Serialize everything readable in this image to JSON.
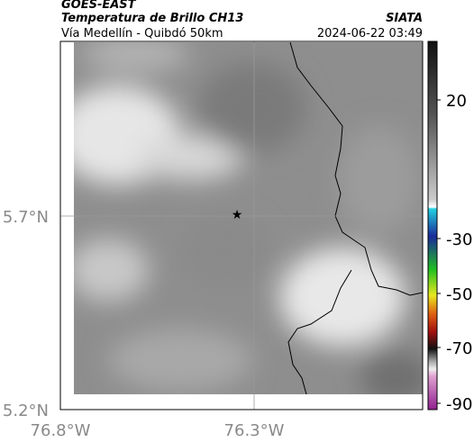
{
  "header": {
    "satellite": "GOES-EAST",
    "product": "Temperatura de Brillo CH13",
    "region": "Vía Medellín - Quibdó 50km",
    "source": "SIATA",
    "datetime": "2024-06-22 03:49"
  },
  "map": {
    "lat_ticks": [
      "5.7°N",
      "5.2°N"
    ],
    "lon_ticks": [
      "76.8°W",
      "76.3°W"
    ]
  },
  "colorbar": {
    "ticks": [
      "20",
      "-30",
      "-50",
      "-70",
      "-90"
    ]
  }
}
